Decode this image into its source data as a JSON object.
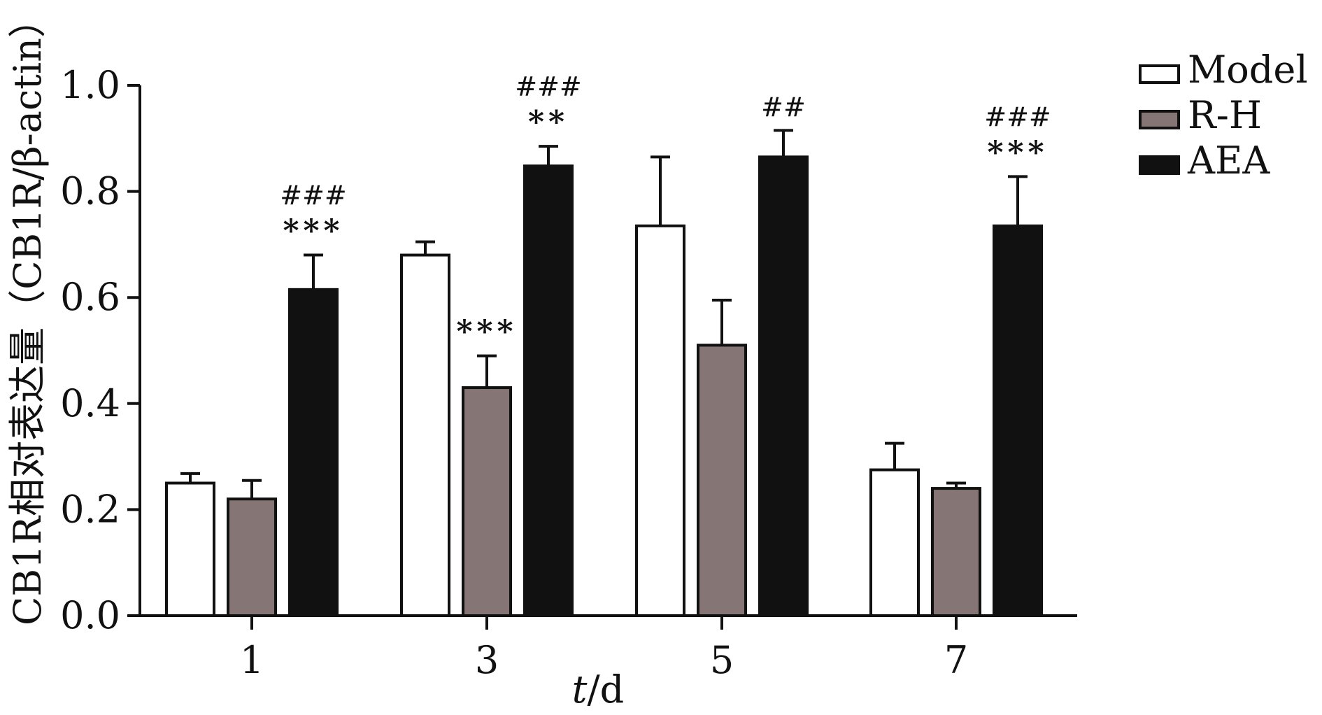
{
  "chart_data": {
    "type": "bar",
    "categories": [
      "1",
      "3",
      "5",
      "7"
    ],
    "xlabel_italic": "t",
    "xlabel_rest": "/d",
    "ylabel": "CB1R相对表达量（CB1R/β-actin）",
    "ylim": [
      0,
      1.0
    ],
    "yticks": [
      "0.0",
      "0.2",
      "0.4",
      "0.6",
      "0.8",
      "1.0"
    ],
    "legend_position": "top-right",
    "series": [
      {
        "name": "Model",
        "color": "#ffffff",
        "values": [
          0.25,
          0.68,
          0.735,
          0.275
        ],
        "errors": [
          0.018,
          0.025,
          0.13,
          0.05
        ]
      },
      {
        "name": "R-H",
        "color": "#857574",
        "values": [
          0.22,
          0.43,
          0.51,
          0.24
        ],
        "errors": [
          0.035,
          0.06,
          0.085,
          0.01
        ]
      },
      {
        "name": "AEA",
        "color": "#111111",
        "values": [
          0.615,
          0.848,
          0.865,
          0.735
        ],
        "errors": [
          0.065,
          0.037,
          0.05,
          0.093
        ]
      }
    ],
    "annotations": [
      {
        "series": 2,
        "category": 0,
        "stars": "***",
        "hashes": "###"
      },
      {
        "series": 1,
        "category": 1,
        "stars": "***",
        "hashes": ""
      },
      {
        "series": 2,
        "category": 1,
        "stars": "**",
        "hashes": "###"
      },
      {
        "series": 2,
        "category": 2,
        "stars": "",
        "hashes": "##"
      },
      {
        "series": 2,
        "category": 3,
        "stars": "***",
        "hashes": "###"
      }
    ]
  }
}
